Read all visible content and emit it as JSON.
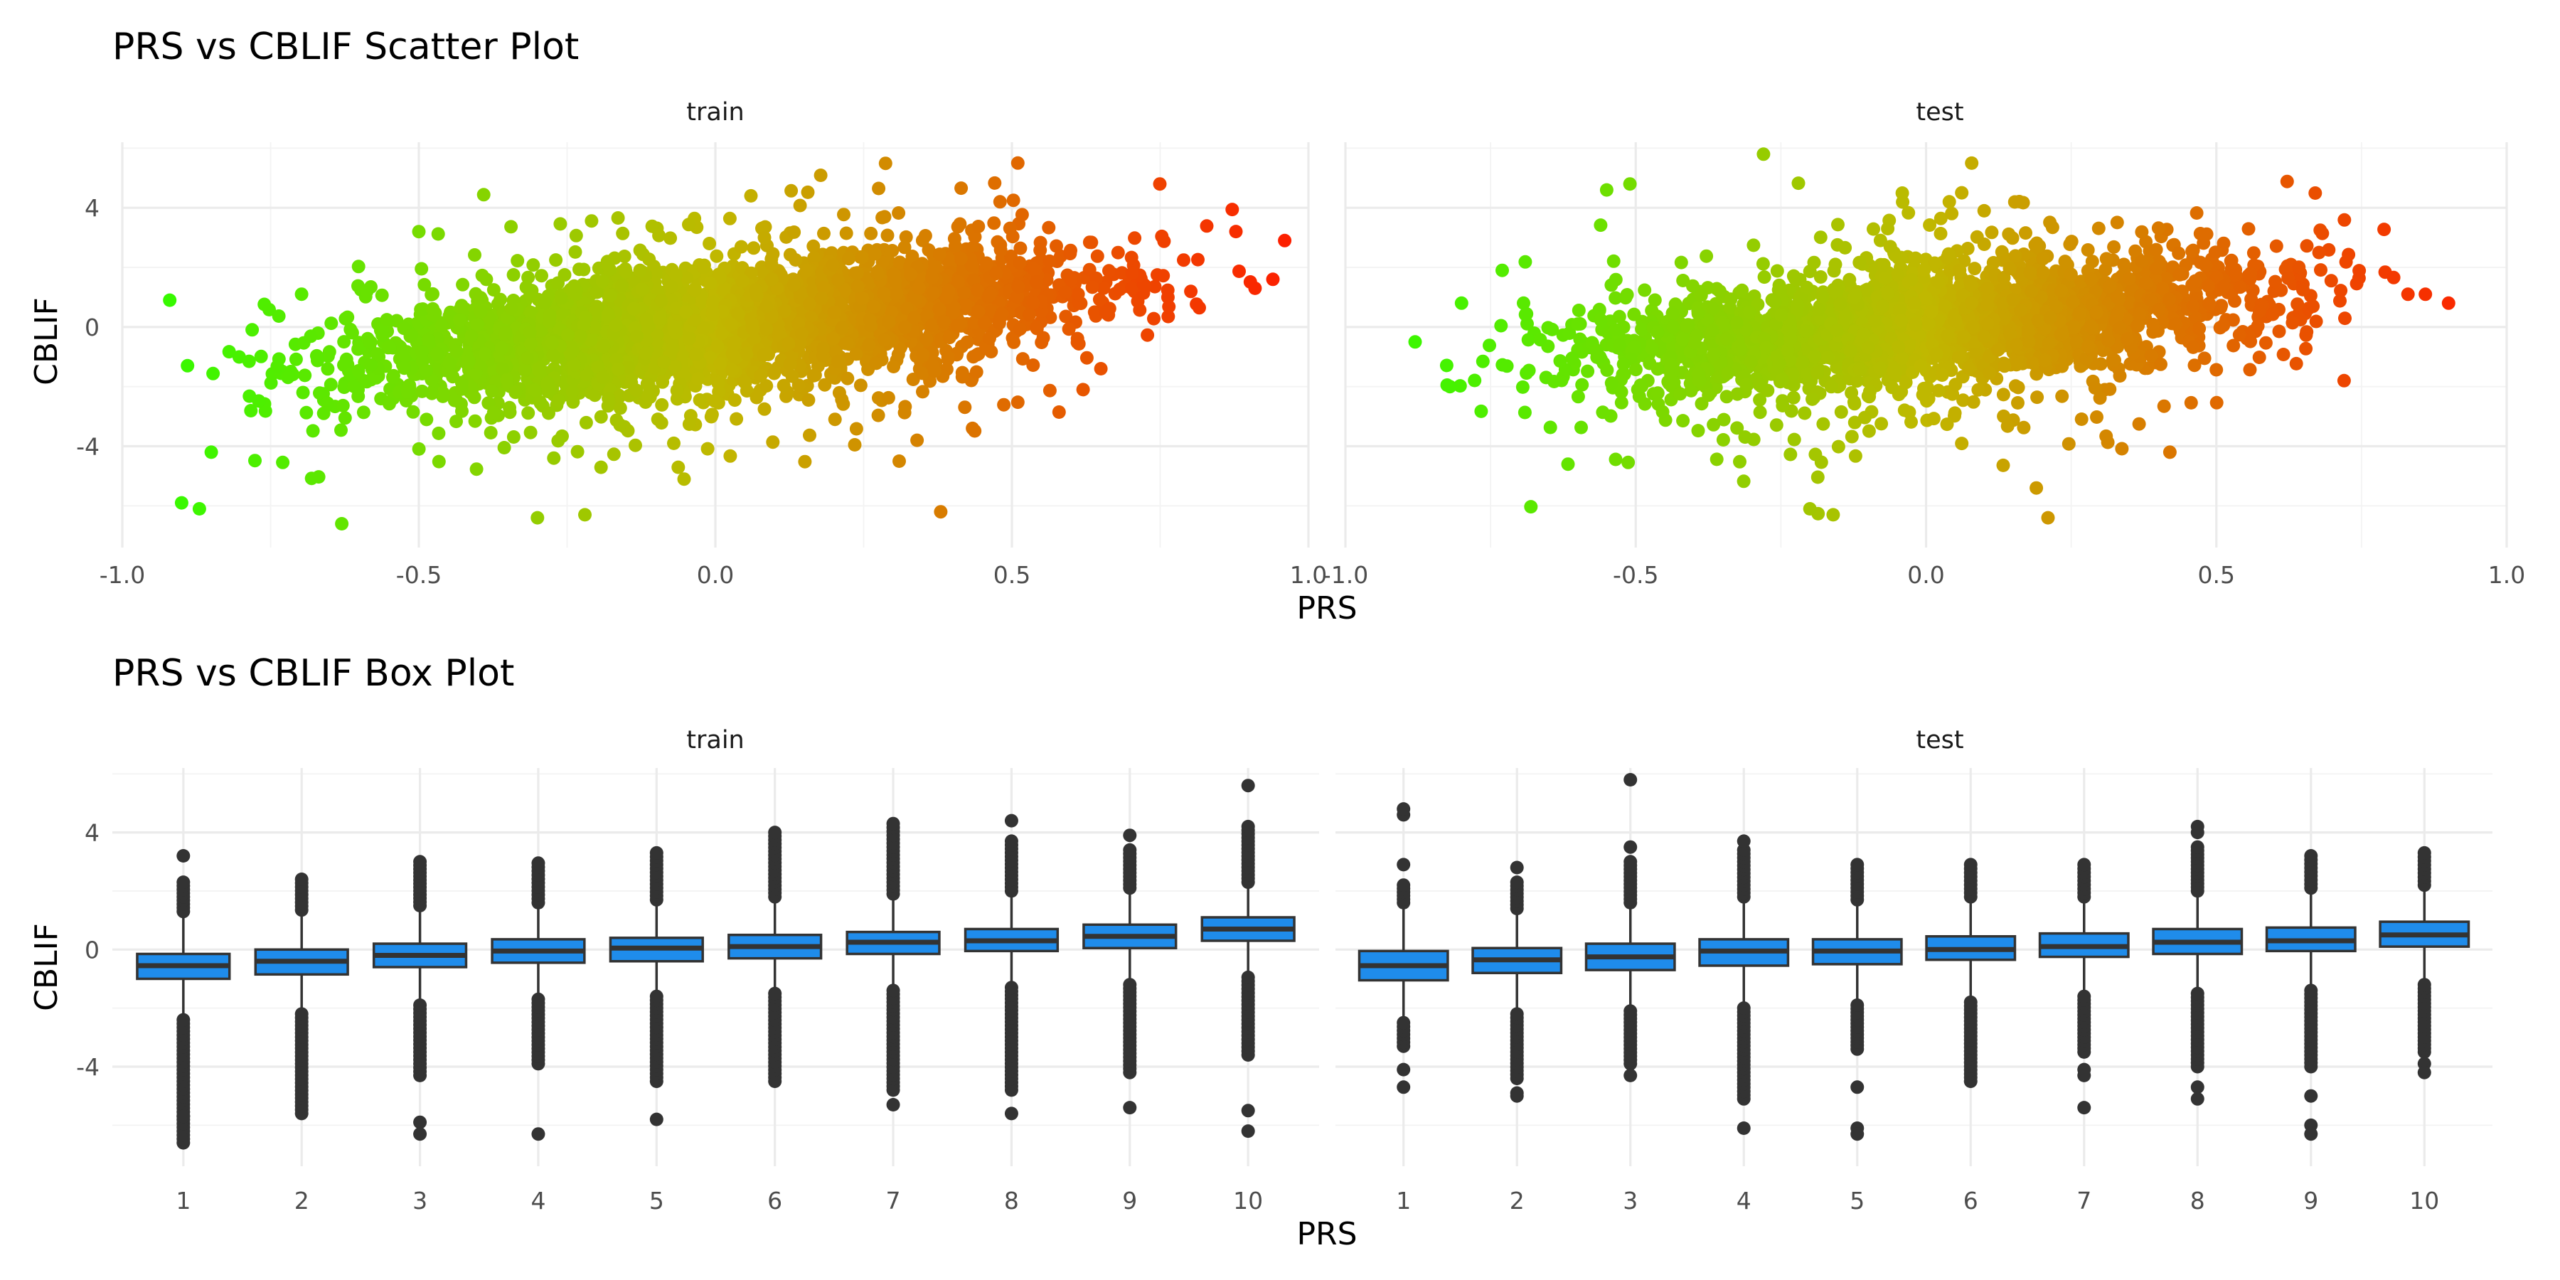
{
  "chart_data": [
    {
      "type": "scatter",
      "title": "PRS vs CBLIF Scatter Plot",
      "xlabel": "PRS",
      "ylabel": "CBLIF",
      "xlim": [
        -1.0,
        1.0
      ],
      "ylim": [
        -7.4,
        6.2
      ],
      "x_ticks": [
        "-1.0",
        "-0.5",
        "0.0",
        "0.5",
        "1.0"
      ],
      "y_ticks": [
        "4",
        "0",
        "-4"
      ],
      "color_scale": {
        "low": "#2bff00",
        "mid": "#c0b800",
        "high": "#ff1a00",
        "by": "PRS"
      },
      "grid": true,
      "facets": [
        {
          "name": "train",
          "trend": {
            "intercept": 0.05,
            "slope": 1.95
          },
          "x_range": [
            -0.92,
            0.96
          ],
          "outliers": [
            [
              -0.92,
              0.9
            ],
            [
              -0.9,
              -5.9
            ],
            [
              -0.87,
              -6.1
            ],
            [
              -0.85,
              -4.2
            ],
            [
              -0.89,
              -1.3
            ],
            [
              -0.63,
              -6.6
            ],
            [
              -0.5,
              3.2
            ],
            [
              -0.3,
              -6.4
            ],
            [
              -0.22,
              -6.3
            ],
            [
              0.06,
              4.4
            ],
            [
              0.38,
              -6.2
            ],
            [
              0.48,
              4.2
            ],
            [
              0.51,
              5.5
            ],
            [
              0.96,
              2.9
            ],
            [
              0.94,
              1.6
            ],
            [
              0.91,
              1.3
            ],
            [
              0.62,
              -2.1
            ],
            [
              0.65,
              -1.4
            ],
            [
              0.34,
              -3.8
            ],
            [
              0.31,
              -4.5
            ]
          ]
        },
        {
          "name": "test",
          "trend": {
            "intercept": 0.02,
            "slope": 1.7
          },
          "x_range": [
            -0.88,
            0.9
          ],
          "outliers": [
            [
              -0.88,
              -0.5
            ],
            [
              -0.82,
              -2.0
            ],
            [
              -0.8,
              0.8
            ],
            [
              -0.73,
              1.9
            ],
            [
              -0.6,
              0.1
            ],
            [
              -0.55,
              4.6
            ],
            [
              -0.51,
              4.8
            ],
            [
              -0.28,
              5.8
            ],
            [
              -0.2,
              -6.1
            ],
            [
              -0.16,
              -6.3
            ],
            [
              0.04,
              4.2
            ],
            [
              0.1,
              3.9
            ],
            [
              0.21,
              -6.4
            ],
            [
              0.19,
              -5.4
            ],
            [
              0.86,
              1.1
            ],
            [
              0.9,
              0.8
            ],
            [
              0.83,
              1.1
            ],
            [
              0.72,
              -1.8
            ],
            [
              0.42,
              -4.2
            ]
          ]
        }
      ]
    },
    {
      "type": "box",
      "title": "PRS vs CBLIF Box Plot",
      "xlabel": "PRS",
      "ylabel": "CBLIF",
      "categories": [
        "1",
        "2",
        "3",
        "4",
        "5",
        "6",
        "7",
        "8",
        "9",
        "10"
      ],
      "ylim": [
        -7.4,
        6.2
      ],
      "y_ticks": [
        "4",
        "0",
        "-4"
      ],
      "box_color": "#1f8ceb",
      "grid": true,
      "facets": [
        {
          "name": "train",
          "boxes": [
            {
              "q1": -1.0,
              "median": -0.55,
              "q3": -0.15,
              "wlo": -2.3,
              "whi": 1.15,
              "out_lo": [
                -2.4,
                -6.6
              ],
              "out_hi": [
                1.3,
                2.3
              ],
              "extra": [
                3.2,
                -5.7
              ]
            },
            {
              "q1": -0.85,
              "median": -0.4,
              "q3": 0.0,
              "wlo": -2.1,
              "whi": 1.25,
              "out_lo": [
                -2.2,
                -5.6
              ],
              "out_hi": [
                1.35,
                2.4
              ],
              "extra": []
            },
            {
              "q1": -0.6,
              "median": -0.2,
              "q3": 0.2,
              "wlo": -1.8,
              "whi": 1.4,
              "out_lo": [
                -1.9,
                -4.3
              ],
              "out_hi": [
                1.5,
                3.0
              ],
              "extra": [
                -5.9,
                -6.3
              ]
            },
            {
              "q1": -0.45,
              "median": -0.05,
              "q3": 0.35,
              "wlo": -1.6,
              "whi": 1.5,
              "out_lo": [
                -1.7,
                -3.9
              ],
              "out_hi": [
                1.6,
                2.95
              ],
              "extra": [
                -6.3
              ]
            },
            {
              "q1": -0.4,
              "median": 0.05,
              "q3": 0.4,
              "wlo": -1.5,
              "whi": 1.6,
              "out_lo": [
                -1.6,
                -4.5
              ],
              "out_hi": [
                1.7,
                3.3
              ],
              "extra": [
                -5.8
              ]
            },
            {
              "q1": -0.3,
              "median": 0.1,
              "q3": 0.5,
              "wlo": -1.4,
              "whi": 1.7,
              "out_lo": [
                -1.5,
                -4.5
              ],
              "out_hi": [
                1.8,
                4.0
              ],
              "extra": []
            },
            {
              "q1": -0.15,
              "median": 0.25,
              "q3": 0.6,
              "wlo": -1.3,
              "whi": 1.8,
              "out_lo": [
                -1.4,
                -4.8
              ],
              "out_hi": [
                1.9,
                4.3
              ],
              "extra": [
                -5.3
              ]
            },
            {
              "q1": -0.05,
              "median": 0.3,
              "q3": 0.7,
              "wlo": -1.2,
              "whi": 1.9,
              "out_lo": [
                -1.3,
                -4.8
              ],
              "out_hi": [
                2.0,
                3.7
              ],
              "extra": [
                4.4,
                -5.6
              ]
            },
            {
              "q1": 0.05,
              "median": 0.45,
              "q3": 0.85,
              "wlo": -1.1,
              "whi": 2.0,
              "out_lo": [
                -1.2,
                -4.2
              ],
              "out_hi": [
                2.1,
                3.4
              ],
              "extra": [
                3.9,
                -5.4
              ]
            },
            {
              "q1": 0.3,
              "median": 0.7,
              "q3": 1.1,
              "wlo": -0.85,
              "whi": 2.2,
              "out_lo": [
                -0.95,
                -3.6
              ],
              "out_hi": [
                2.3,
                4.2
              ],
              "extra": [
                5.6,
                -5.5,
                -6.2
              ]
            }
          ]
        },
        {
          "name": "test",
          "boxes": [
            {
              "q1": -1.05,
              "median": -0.55,
              "q3": -0.05,
              "wlo": -2.4,
              "whi": 1.4,
              "out_lo": [
                -2.5,
                -3.3
              ],
              "out_hi": [
                1.6,
                2.2
              ],
              "extra": [
                2.9,
                4.6,
                4.8,
                -4.1,
                -4.7
              ]
            },
            {
              "q1": -0.8,
              "median": -0.35,
              "q3": 0.05,
              "wlo": -2.1,
              "whi": 1.3,
              "out_lo": [
                -2.2,
                -4.4
              ],
              "out_hi": [
                1.4,
                2.3
              ],
              "extra": [
                2.8,
                -4.9,
                -5.0
              ]
            },
            {
              "q1": -0.7,
              "median": -0.25,
              "q3": 0.2,
              "wlo": -2.0,
              "whi": 1.5,
              "out_lo": [
                -2.1,
                -3.9
              ],
              "out_hi": [
                1.6,
                3.0
              ],
              "extra": [
                3.5,
                5.8,
                -4.3
              ]
            },
            {
              "q1": -0.55,
              "median": -0.05,
              "q3": 0.35,
              "wlo": -1.9,
              "whi": 1.7,
              "out_lo": [
                -2.0,
                -5.1
              ],
              "out_hi": [
                1.8,
                3.4
              ],
              "extra": [
                3.7,
                -6.1
              ]
            },
            {
              "q1": -0.5,
              "median": -0.05,
              "q3": 0.35,
              "wlo": -1.8,
              "whi": 1.6,
              "out_lo": [
                -1.9,
                -3.4
              ],
              "out_hi": [
                1.7,
                2.9
              ],
              "extra": [
                -4.7,
                -6.1,
                -6.3
              ]
            },
            {
              "q1": -0.35,
              "median": 0.0,
              "q3": 0.45,
              "wlo": -1.7,
              "whi": 1.7,
              "out_lo": [
                -1.8,
                -4.5
              ],
              "out_hi": [
                1.8,
                2.9
              ],
              "extra": []
            },
            {
              "q1": -0.25,
              "median": 0.1,
              "q3": 0.55,
              "wlo": -1.5,
              "whi": 1.7,
              "out_lo": [
                -1.6,
                -3.5
              ],
              "out_hi": [
                1.8,
                2.9
              ],
              "extra": [
                -4.1,
                -4.3,
                -5.4
              ]
            },
            {
              "q1": -0.15,
              "median": 0.25,
              "q3": 0.7,
              "wlo": -1.4,
              "whi": 1.9,
              "out_lo": [
                -1.5,
                -4.0
              ],
              "out_hi": [
                2.0,
                3.5
              ],
              "extra": [
                4.0,
                4.2,
                -4.7,
                -5.1
              ]
            },
            {
              "q1": -0.05,
              "median": 0.3,
              "q3": 0.75,
              "wlo": -1.3,
              "whi": 2.0,
              "out_lo": [
                -1.4,
                -4.0
              ],
              "out_hi": [
                2.1,
                3.2
              ],
              "extra": [
                -5.0,
                -6.0,
                -6.3
              ]
            },
            {
              "q1": 0.1,
              "median": 0.5,
              "q3": 0.95,
              "wlo": -1.1,
              "whi": 2.1,
              "out_lo": [
                -1.2,
                -3.5
              ],
              "out_hi": [
                2.2,
                3.3
              ],
              "extra": [
                -3.9,
                -4.2
              ]
            }
          ]
        }
      ]
    }
  ]
}
